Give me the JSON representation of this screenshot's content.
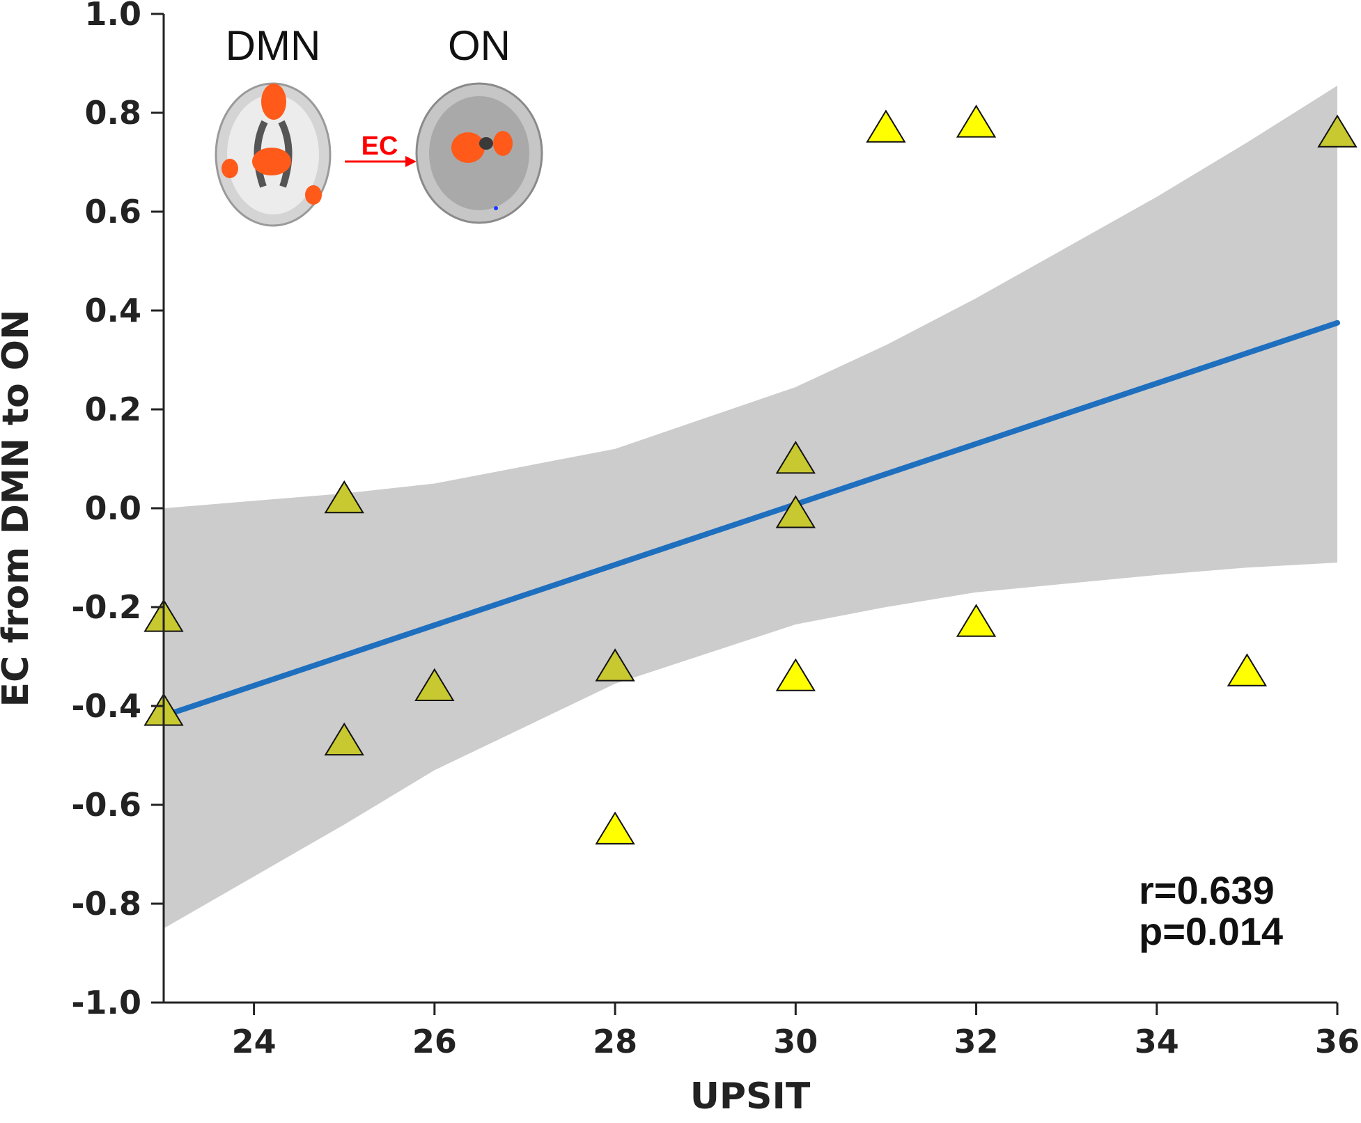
{
  "chart_data": {
    "type": "scatter",
    "xlabel": "UPSIT",
    "ylabel": "EC from DMN to ON",
    "xlim": [
      23,
      36
    ],
    "ylim": [
      -1.0,
      1.0
    ],
    "x_ticks": [
      24,
      26,
      28,
      30,
      32,
      34,
      36
    ],
    "y_ticks": [
      1.0,
      0.8,
      0.6,
      0.4,
      0.2,
      0.0,
      -0.2,
      -0.4,
      -0.6,
      -0.8,
      -1.0
    ],
    "x_tick_labels": [
      "24",
      "26",
      "28",
      "30",
      "32",
      "34",
      "36"
    ],
    "y_tick_labels": [
      "1.0",
      "0.8",
      "0.6",
      "0.4",
      "0.2",
      "0.0",
      "-0.2",
      "-0.4",
      "-0.6",
      "-0.8",
      "-1.0"
    ],
    "points": [
      {
        "x": 23,
        "y": -0.22
      },
      {
        "x": 23,
        "y": -0.41
      },
      {
        "x": 25,
        "y": 0.02
      },
      {
        "x": 25,
        "y": -0.47
      },
      {
        "x": 26,
        "y": -0.36
      },
      {
        "x": 28,
        "y": -0.32
      },
      {
        "x": 28,
        "y": -0.65
      },
      {
        "x": 30,
        "y": 0.1
      },
      {
        "x": 30,
        "y": -0.01
      },
      {
        "x": 30,
        "y": -0.34
      },
      {
        "x": 31,
        "y": 0.77
      },
      {
        "x": 32,
        "y": 0.78
      },
      {
        "x": 32,
        "y": -0.23
      },
      {
        "x": 35,
        "y": -0.33
      },
      {
        "x": 36,
        "y": 0.76
      }
    ],
    "fit_line": [
      {
        "x": 23,
        "y": -0.42
      },
      {
        "x": 36,
        "y": 0.375
      }
    ],
    "confidence_band": {
      "x": [
        23,
        25,
        26,
        28,
        30,
        31,
        32,
        34,
        35,
        36
      ],
      "upper": [
        0.0,
        0.03,
        0.05,
        0.12,
        0.245,
        0.33,
        0.425,
        0.63,
        0.74,
        0.855
      ],
      "lower": [
        -0.85,
        -0.64,
        -0.53,
        -0.355,
        -0.235,
        -0.2,
        -0.17,
        -0.135,
        -0.12,
        -0.11
      ]
    },
    "colors": {
      "marker": "#ffff00",
      "marker_overlap": "#c8c830",
      "fit_line": "#1f6fbf",
      "band": "#cccccc"
    },
    "grid": false
  },
  "inset": {
    "dmn_label": "DMN",
    "on_label": "ON",
    "ec_label": "EC"
  },
  "stats": {
    "r_text": "r=0.639",
    "p_text": "p=0.014"
  }
}
